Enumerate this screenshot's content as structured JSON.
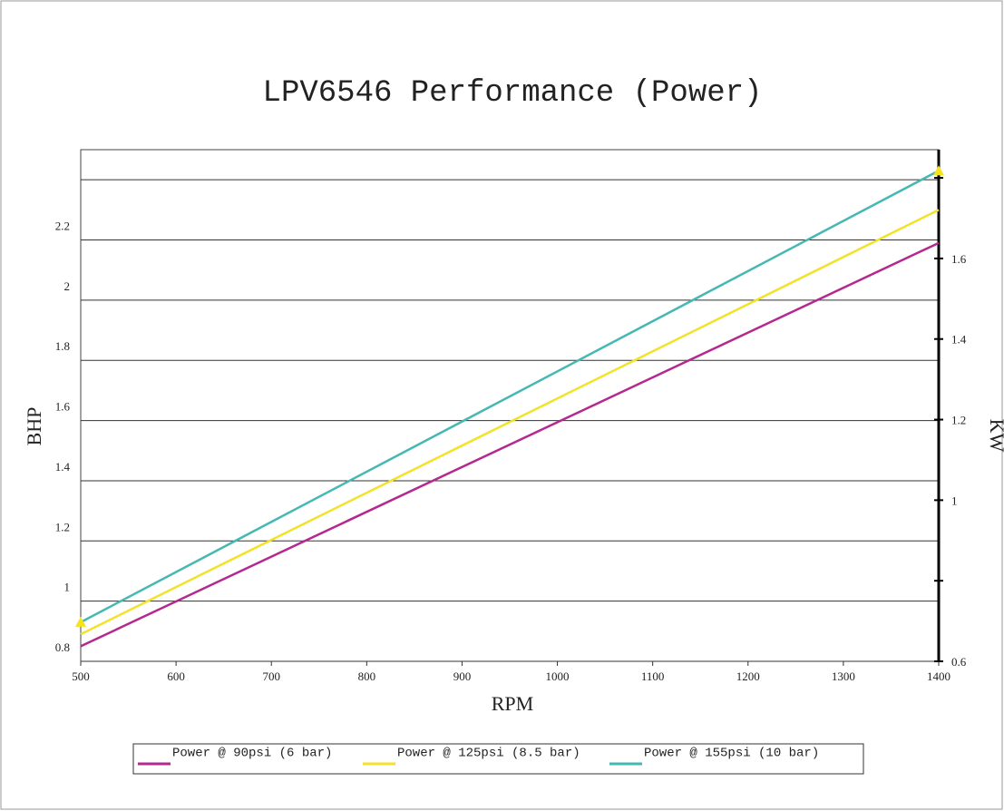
{
  "chart_data": {
    "type": "line",
    "title": "LPV6546 Performance (Power)",
    "x_label": "RPM",
    "y_label": "BHP",
    "y2_label": "KW",
    "xlim": [
      500,
      1400
    ],
    "xticks": [
      500,
      600,
      700,
      800,
      900,
      1000,
      1100,
      1200,
      1300,
      1400
    ],
    "ylim": [
      0.8,
      2.5
    ],
    "yticks": [
      0.8,
      1,
      1.2,
      1.4,
      1.6,
      1.8,
      2,
      2.2
    ],
    "ygrid": [
      0.8,
      1,
      1.2,
      1.4,
      1.6,
      1.8,
      2,
      2.2,
      2.4
    ],
    "y2lim": [
      0.6,
      1.87
    ],
    "y2ticks": [
      0.6,
      1,
      1.2,
      1.4,
      1.6
    ],
    "y2tick_marks": [
      0.6,
      0.8,
      1,
      1.2,
      1.4,
      1.6,
      1.8
    ],
    "grid": true,
    "x": [
      500,
      1400
    ],
    "series": [
      {
        "name": "Power @ 90psi (6 bar)",
        "color": "#b5288f",
        "values": [
          0.85,
          2.19
        ]
      },
      {
        "name": "Power @ 125psi (8.5 bar)",
        "color": "#f2e22a",
        "values": [
          0.89,
          2.3
        ]
      },
      {
        "name": "Power @ 155psi (10 bar)",
        "color": "#45b8b4",
        "values": [
          0.93,
          2.43
        ],
        "marker": "triangle",
        "marker_color": "#f5e31c"
      }
    ]
  }
}
